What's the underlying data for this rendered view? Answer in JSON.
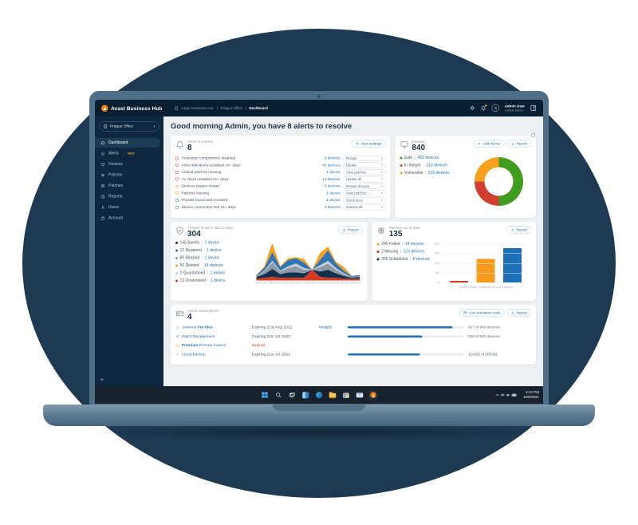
{
  "app": {
    "topbar": {
      "logo_text": "Avast Business Hub",
      "breadcrumb": [
        "Large Business Ave.",
        "Prague Office",
        "Dashboard"
      ],
      "user_name": "Admin User",
      "user_role": "Global Admin"
    },
    "sidebar": {
      "org_selector": "Prague Office",
      "collapse_glyph": "«",
      "items": [
        {
          "label": "Dashboard",
          "icon": "dashboard",
          "active": true
        },
        {
          "label": "Alerts",
          "icon": "alerts",
          "badge": "NEW"
        },
        {
          "label": "Devices",
          "icon": "devices"
        },
        {
          "label": "Policies",
          "icon": "policies"
        },
        {
          "label": "Patches",
          "icon": "patches"
        },
        {
          "label": "Reports",
          "icon": "reports"
        },
        {
          "label": "Users",
          "icon": "users"
        },
        {
          "label": "Account",
          "icon": "account"
        }
      ]
    },
    "greeting": "Good morning Admin, you have 8 alerts to resolve",
    "alerts_card": {
      "label": "Alerts to resolve",
      "count": "8",
      "settings_button": "Alert settings",
      "rows": [
        {
          "icon": "shield",
          "color": "#e2392f",
          "label": "Protection components disabled",
          "devices": "6 devices",
          "action": "Restart"
        },
        {
          "icon": "shield",
          "color": "#e2392f",
          "label": "Virus definitions outdated 14+ days",
          "devices": "45 devices",
          "action": "Update"
        },
        {
          "icon": "patch",
          "color": "#e2392f",
          "label": "Critical patches missing",
          "devices": "1 device",
          "action": "View patches"
        },
        {
          "icon": "shield",
          "color": "#e2392f",
          "label": "AV client outdated 21+ days",
          "devices": "14 devices",
          "action": "Update all"
        },
        {
          "icon": "monitor",
          "color": "#f7a11c",
          "label": "Devices require restart",
          "devices": "6 devices",
          "action": "Restart devices"
        },
        {
          "icon": "patch",
          "color": "#f7a11c",
          "label": "Patches missing",
          "devices": "1 device",
          "action": "View patches"
        },
        {
          "icon": "shield",
          "color": "#2f74b4",
          "label": "Threats found and resolved",
          "devices": "1 device",
          "action": "Quick scan"
        },
        {
          "icon": "monitor",
          "color": "#2f74b4",
          "label": "Device connection lost 14+ days",
          "devices": "3 devices",
          "action": "Dismiss all"
        }
      ]
    },
    "devices_card": {
      "label": "Devices",
      "count": "840",
      "add_button": "Add device",
      "report_button": "Report",
      "legend": [
        {
          "name": "Safe",
          "devices": "420 devices",
          "color": "#3f9c1f"
        },
        {
          "name": "In danger",
          "devices": "210 devices",
          "color": "#d23f31"
        },
        {
          "name": "Vulnerable",
          "devices": "210 devices",
          "color": "#f7a11c"
        }
      ]
    },
    "threats_card": {
      "label": "Threats found in last 14 days",
      "count": "304",
      "report_button": "Report",
      "legend": [
        {
          "count": "145",
          "name": "Autofix",
          "devices": "1 device",
          "color": "#12304e"
        },
        {
          "count": "12",
          "name": "Repaired",
          "devices": "1 device",
          "color": "#2f74b4"
        },
        {
          "count": "89",
          "name": "Blocked",
          "devices": "1 device",
          "color": "#8d9aa5"
        },
        {
          "count": "56",
          "name": "Deleted",
          "devices": "14 devices",
          "color": "#f7a11c"
        },
        {
          "count": "2",
          "name": "Quarantined",
          "devices": "1 device",
          "color": "#c6ced5"
        },
        {
          "count": "13",
          "name": "Unresolved",
          "devices": "1 device",
          "color": "#d6391f"
        }
      ]
    },
    "patches_card": {
      "label": "Patches out of date",
      "count": "135",
      "report_button": "Report",
      "legend": [
        {
          "count": "245",
          "name": "Failed",
          "devices": "14 devices",
          "color": "#f79a1c"
        },
        {
          "count": "2",
          "name": "Missing",
          "devices": "123 devices",
          "color": "#d6391f"
        },
        {
          "count": "356",
          "name": "Scheduled",
          "devices": "8 devices",
          "color": "#12304e"
        }
      ]
    },
    "subscriptions_card": {
      "label": "Active subscriptions",
      "count": "4",
      "activation_button": "Use activation code",
      "report_button": "Report",
      "rows": [
        {
          "icon": "shield",
          "icon_color": "#8b98a3",
          "name_parts": [
            {
              "t": "Antivirus ",
              "b": false
            },
            {
              "t": "Pro Plus",
              "b": true
            }
          ],
          "expiry": "Expiring 21st Aug, 2022",
          "expired": false,
          "extra": "Multiple",
          "progress": 90,
          "usage": "827 of 840 devices"
        },
        {
          "icon": "patch",
          "icon_color": "#8b98a3",
          "name_parts": [
            {
              "t": "Patch Management",
              "b": false
            }
          ],
          "expiry": "Expiring 21st Jul, 2022",
          "expired": false,
          "extra": "",
          "progress": 64,
          "usage": "540 of 840 devices"
        },
        {
          "icon": "monitor",
          "icon_color": "#f7a11c",
          "name_parts": [
            {
              "t": "Premium",
              "b": true
            },
            {
              "t": " Remote Control",
              "b": false
            }
          ],
          "expiry": "Expired",
          "expired": true,
          "extra": "",
          "progress": null,
          "usage": ""
        },
        {
          "icon": "cloud",
          "icon_color": "#8b98a3",
          "name_parts": [
            {
              "t": "Cloud Backup",
              "b": false
            }
          ],
          "expiry": "Expiring 21st Jul, 2022",
          "expired": false,
          "extra": "",
          "progress": 62,
          "usage": "120GB of 500GB"
        }
      ]
    }
  },
  "taskbar": {
    "icons": [
      "start",
      "search",
      "taskview",
      "widgets",
      "edge",
      "explorer",
      "store",
      "mail",
      "avast"
    ],
    "time": "5:24 PM",
    "date": "10/8/2021"
  },
  "chart_data": [
    {
      "id": "devices_donut",
      "type": "pie",
      "title": "Devices",
      "labels": [
        "Safe",
        "In danger",
        "Vulnerable"
      ],
      "values": [
        420,
        210,
        210
      ],
      "colors": [
        "#3f9c1f",
        "#d23f31",
        "#f7a11c"
      ],
      "total": 840,
      "donut": true
    },
    {
      "id": "threats_area",
      "type": "area",
      "title": "Threats found in last 14 days",
      "stacked": true,
      "x": [
        "Jun 1",
        "Jun 2",
        "Jun 3",
        "Jun 4",
        "Jun 5",
        "Jun 6",
        "Jun 7",
        "Jun 8",
        "Jun 9",
        "Jun 10",
        "Jun 11",
        "Jun 12",
        "Jun 13",
        "Jun 14"
      ],
      "series": [
        {
          "name": "Unresolved",
          "color": "#d6391f",
          "values": [
            2,
            3,
            4,
            3,
            3,
            3,
            3,
            12,
            4,
            3,
            3,
            2,
            2,
            2
          ]
        },
        {
          "name": "Autofix",
          "color": "#12304e",
          "values": [
            2,
            4,
            9,
            4,
            6,
            6,
            5,
            0,
            6,
            9,
            5,
            3,
            1,
            2
          ]
        },
        {
          "name": "Blocked",
          "color": "#8d9aa5",
          "values": [
            1,
            3,
            7,
            3,
            5,
            7,
            4,
            0,
            5,
            7,
            4,
            2,
            1,
            1
          ]
        },
        {
          "name": "Quarantined",
          "color": "#c6ced5",
          "values": [
            0,
            1,
            2,
            1,
            2,
            3,
            2,
            0,
            2,
            3,
            2,
            1,
            0,
            0
          ]
        },
        {
          "name": "Repaired",
          "color": "#2f74b4",
          "values": [
            1,
            3,
            10,
            4,
            7,
            6,
            6,
            0,
            6,
            12,
            5,
            3,
            1,
            1
          ]
        },
        {
          "name": "Deleted",
          "color": "#f7a11c",
          "values": [
            0,
            2,
            10,
            1,
            2,
            1,
            4,
            0,
            8,
            4,
            2,
            4,
            0,
            0
          ]
        }
      ]
    },
    {
      "id": "patches_bar",
      "type": "bar",
      "categories": [
        "Missing",
        "Failed",
        "Scheduled"
      ],
      "values": [
        2,
        245,
        356
      ],
      "colors": [
        "#d6391f",
        "#f79a1c",
        "#1d6fb8"
      ],
      "ylim": [
        0,
        400
      ],
      "yticks": [
        400,
        300,
        200,
        100,
        0
      ],
      "caption": "Current state of patches on your devices"
    }
  ]
}
